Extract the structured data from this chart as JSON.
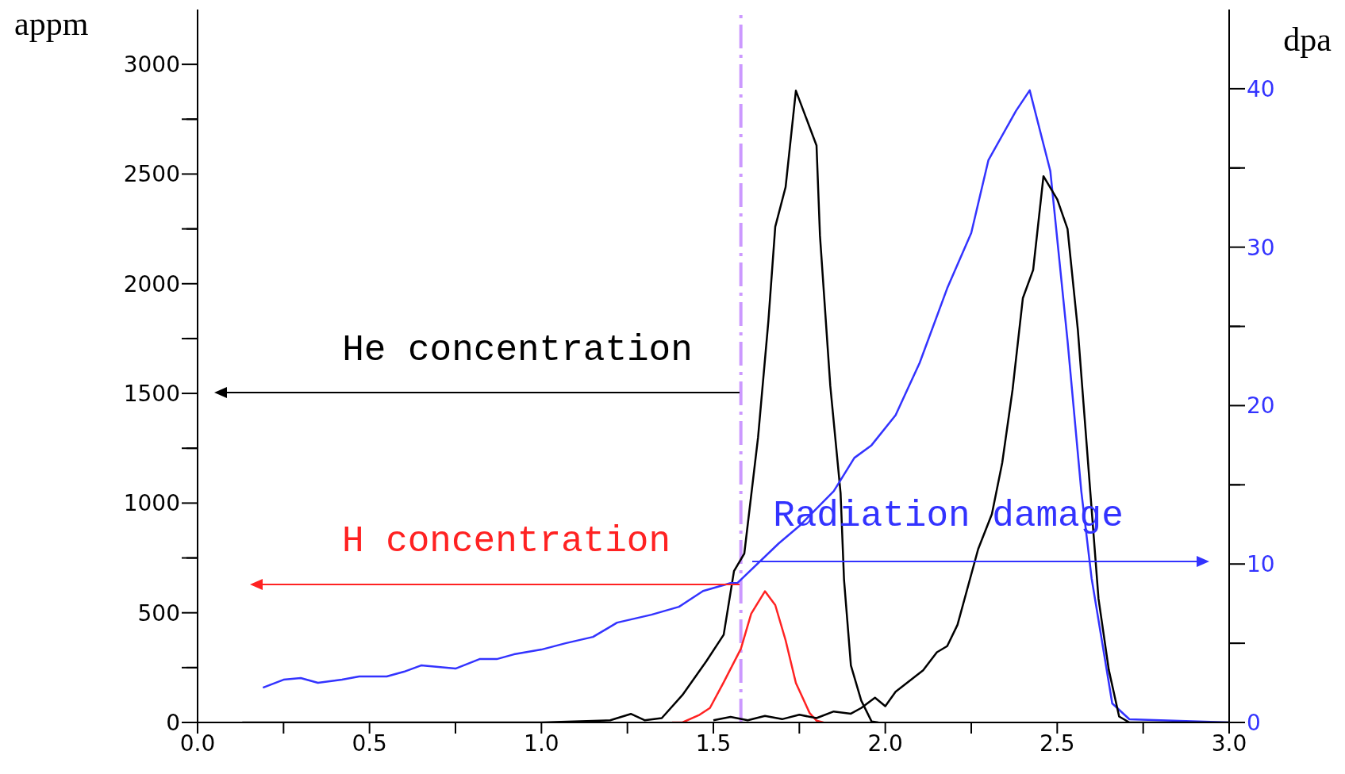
{
  "chart_data": {
    "type": "line",
    "ylabel": "appm",
    "y2label": "dpa",
    "xlim": [
      0,
      3
    ],
    "xticks": [
      {
        "value": 0,
        "label": "0.0"
      },
      {
        "value": 0.25,
        "label": null
      },
      0.5,
      {
        "value": 0.75,
        "label": null
      },
      {
        "value": 1,
        "label": "1.0"
      },
      {
        "value": 1.25,
        "label": null
      },
      1.5,
      {
        "value": 1.75,
        "label": null
      },
      {
        "value": 2,
        "label": "2.0"
      },
      {
        "value": 2.25,
        "label": null
      },
      2.5,
      {
        "value": 2.75,
        "label": null
      },
      {
        "value": 3,
        "label": "3.0"
      }
    ],
    "ylim": [
      0,
      3250
    ],
    "yticks": [
      0,
      {
        "value": 250,
        "label": null
      },
      500,
      {
        "value": 750,
        "label": null
      },
      1000,
      {
        "value": 1250,
        "label": null
      },
      1500,
      {
        "value": 1750,
        "label": null
      },
      2000,
      {
        "value": 2250,
        "label": null
      },
      2500,
      {
        "value": 2750,
        "label": null
      },
      3000
    ],
    "y2lim": [
      0,
      45
    ],
    "y2ticks": [
      0,
      {
        "value": 5,
        "label": null
      },
      10,
      {
        "value": 15,
        "label": null
      },
      20,
      {
        "value": 25,
        "label": null
      },
      30,
      {
        "value": 35,
        "label": null
      },
      40
    ],
    "series": [
      {
        "color": "#000000",
        "x": [
          0.13,
          0.6,
          1.0,
          1.2,
          1.26,
          1.3,
          1.35,
          1.41,
          1.48,
          1.53,
          1.56,
          1.59,
          1.63,
          1.66,
          1.68,
          1.71,
          1.74,
          1.8,
          1.81,
          1.84,
          1.87,
          1.88,
          1.9,
          1.93,
          1.96,
          1.98
        ],
        "values": [
          0,
          0,
          0,
          10,
          39,
          10,
          20,
          125,
          280,
          400,
          690,
          770,
          1300,
          1830,
          2260,
          2440,
          2880,
          2630,
          2220,
          1535,
          1045,
          650,
          260,
          100,
          5,
          0
        ]
      },
      {
        "color": "#ff2222",
        "x": [
          1.38,
          1.41,
          1.46,
          1.49,
          1.53,
          1.58,
          1.61,
          1.65,
          1.68,
          1.71,
          1.74,
          1.78,
          1.8,
          1.82
        ],
        "values": [
          0,
          0,
          35,
          66,
          183,
          336,
          496,
          598,
          535,
          375,
          180,
          43,
          8,
          0
        ]
      },
      {
        "color": "#3333ff",
        "axis": "y2",
        "x": [
          0.19,
          0.25,
          0.3,
          0.35,
          0.42,
          0.47,
          0.55,
          0.6,
          0.65,
          0.7,
          0.75,
          0.82,
          0.87,
          0.92,
          1.0,
          1.07,
          1.15,
          1.22,
          1.32,
          1.4,
          1.47,
          1.55,
          1.57,
          1.69,
          1.75,
          1.85,
          1.91,
          1.96,
          2.03,
          2.1,
          2.18,
          2.25,
          2.3,
          2.38,
          2.42,
          2.48,
          2.53,
          2.57,
          2.6,
          2.66,
          2.71,
          3.0
        ],
        "values": [
          2.2,
          2.7,
          2.8,
          2.5,
          2.7,
          2.9,
          2.9,
          3.2,
          3.6,
          3.5,
          3.4,
          4.0,
          4.0,
          4.3,
          4.6,
          5.0,
          5.4,
          6.3,
          6.8,
          7.3,
          8.3,
          8.8,
          8.8,
          11.3,
          12.4,
          14.6,
          16.7,
          17.5,
          19.4,
          22.7,
          27.4,
          30.9,
          35.5,
          38.6,
          39.9,
          34.8,
          24.1,
          14.6,
          9.1,
          1.2,
          0.2,
          0
        ]
      },
      {
        "color": "#000000",
        "x": [
          1.5,
          1.55,
          1.6,
          1.65,
          1.7,
          1.75,
          1.8,
          1.85,
          1.9,
          1.93,
          1.97,
          2.0,
          2.03,
          2.11,
          2.15,
          2.18,
          2.21,
          2.27,
          2.31,
          2.34,
          2.37,
          2.4,
          2.43,
          2.46,
          2.5,
          2.53,
          2.56,
          2.62,
          2.65,
          2.68,
          2.71,
          3.0
        ],
        "values": [
          10,
          25,
          10,
          30,
          15,
          35,
          20,
          50,
          40,
          66,
          113,
          74,
          140,
          238,
          320,
          348,
          445,
          790,
          950,
          1183,
          1515,
          1934,
          2063,
          2490,
          2385,
          2250,
          1790,
          565,
          240,
          27,
          0,
          0
        ]
      }
    ],
    "ref_lines": [
      {
        "axis": "x",
        "value": 1.58,
        "color": "#cc99ff",
        "line_style": "dashed"
      }
    ],
    "annotations": [
      "He concentration",
      "H concentration",
      "Radiation damage"
    ],
    "grid": false,
    "legend": false,
    "marker": "none",
    "line_style": "solid"
  }
}
